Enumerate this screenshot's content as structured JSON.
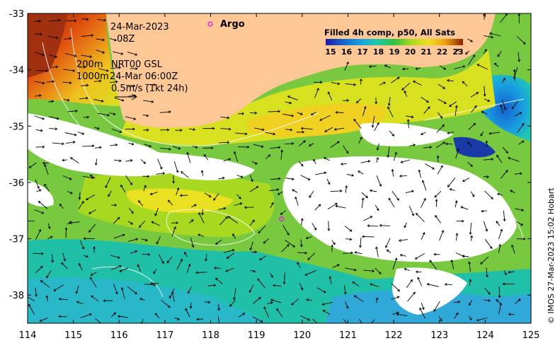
{
  "annotations": {
    "date": "24-Mar-2023",
    "time": "08Z",
    "contour_200": "200m",
    "contour_1000": "1000m",
    "product": "NRT00 GSL",
    "product_time": "24-Mar 06:00Z",
    "velocity_scale": "0.5m/s (1kt 24h)"
  },
  "argo": {
    "label": "Argo",
    "color": "#e020e0",
    "float_2_lon": 119.55,
    "float_2_lat": -36.65
  },
  "colorbar": {
    "title": "Filled 4h comp, p50, All Sats",
    "ticks": [
      "15",
      "16",
      "17",
      "18",
      "19",
      "20",
      "21",
      "22",
      "23"
    ],
    "colors": [
      "#1a1aa0",
      "#1560d0",
      "#18a0e0",
      "#20c8b0",
      "#30c040",
      "#a8d820",
      "#f0e020",
      "#f0a010",
      "#e05010",
      "#8a2008"
    ]
  },
  "axes": {
    "x_ticks": [
      "114",
      "115",
      "116",
      "117",
      "118",
      "119",
      "120",
      "121",
      "122",
      "123",
      "124",
      "125"
    ],
    "y_ticks": [
      "-33",
      "-34",
      "-35",
      "-36",
      "-37",
      "-38"
    ],
    "lon_range": [
      114,
      125
    ],
    "lat_range": [
      -38.5,
      -33
    ]
  },
  "credit": "© IMOS 27-Mar-2023 15:02 Hobart",
  "colors": {
    "land": "#fdc896",
    "no_data": "#ffffff",
    "frame": "#000000"
  }
}
